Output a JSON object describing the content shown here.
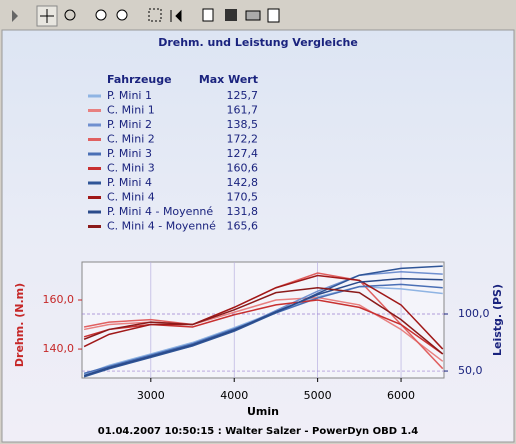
{
  "chart_data": {
    "type": "line",
    "title": "Drehm. und Leistung Vergleiche",
    "legend_headers": [
      "Fahrzeuge",
      "Max Wert"
    ],
    "xlabel": "Umin",
    "ylabel": "Drehm. (N.m)",
    "y2label": "Leistg. (PS)",
    "footer": "01.04.2007 10:50:15 : Walter Salzer - PowerDyn OBD 1.4",
    "x": [
      2200,
      2500,
      3000,
      3500,
      4000,
      4500,
      5000,
      5500,
      6000,
      6500
    ],
    "xlim": [
      2175,
      6515
    ],
    "xticks": [
      3000,
      4000,
      5000,
      6000
    ],
    "ylim": [
      128.2,
      175.5
    ],
    "yticks": [
      {
        "value": 140,
        "label": "140,0"
      },
      {
        "value": 160,
        "label": "160,0"
      }
    ],
    "y2lim": [
      43.9,
      145.6
    ],
    "y2ticks": [
      {
        "value": 50,
        "label": "50,0"
      },
      {
        "value": 100,
        "label": "100,0"
      }
    ],
    "grid": true,
    "series": [
      {
        "name": "P. Mini 1",
        "max": "125,7",
        "color": "#8fb4e3",
        "axis": "y2",
        "values": [
          47,
          55,
          65,
          75,
          88,
          102,
          115,
          124,
          122,
          118
        ]
      },
      {
        "name": "C. Mini 1",
        "max": "161,7",
        "color": "#e88080",
        "values": [
          148,
          150,
          151,
          150,
          155,
          160,
          161,
          158,
          148,
          135
        ]
      },
      {
        "name": "P. Mini 2",
        "max": "138,5",
        "color": "#6f8fcf",
        "axis": "y2",
        "values": [
          46,
          53,
          63,
          72,
          86,
          103,
          120,
          134,
          137,
          135
        ]
      },
      {
        "name": "C. Mini 2",
        "max": "172,2",
        "color": "#e06060",
        "values": [
          149,
          151,
          152,
          150,
          157,
          165,
          171,
          168,
          150,
          132
        ]
      },
      {
        "name": "P. Mini 3",
        "max": "127,4",
        "color": "#4a6fb5",
        "axis": "y2",
        "values": [
          48,
          54,
          64,
          74,
          87,
          101,
          114,
          124,
          126,
          123
        ]
      },
      {
        "name": "C. Mini 3",
        "max": "160,6",
        "color": "#c83030",
        "values": [
          145,
          148,
          150,
          149,
          154,
          158,
          160,
          157,
          150,
          138
        ]
      },
      {
        "name": "P. Mini 4",
        "max": "142,8",
        "color": "#2f5597",
        "axis": "y2",
        "values": [
          45,
          52,
          62,
          72,
          85,
          101,
          118,
          134,
          140,
          142
        ]
      },
      {
        "name": "C. Mini 4",
        "max": "170,5",
        "color": "#a01818",
        "values": [
          141,
          146,
          150,
          150,
          157,
          165,
          170,
          168,
          158,
          140
        ]
      },
      {
        "name": "P. Mini 4 - Moyenné",
        "max": "131,8",
        "color": "#2a4a8a",
        "axis": "y2",
        "values": [
          46,
          53,
          63,
          73,
          86,
          102,
          117,
          128,
          131,
          130
        ]
      },
      {
        "name": "C. Mini 4 - Moyenné",
        "max": "165,6",
        "color": "#8b1a1a",
        "values": [
          144,
          148,
          151,
          150,
          156,
          163,
          165,
          163,
          152,
          138
        ]
      }
    ]
  }
}
